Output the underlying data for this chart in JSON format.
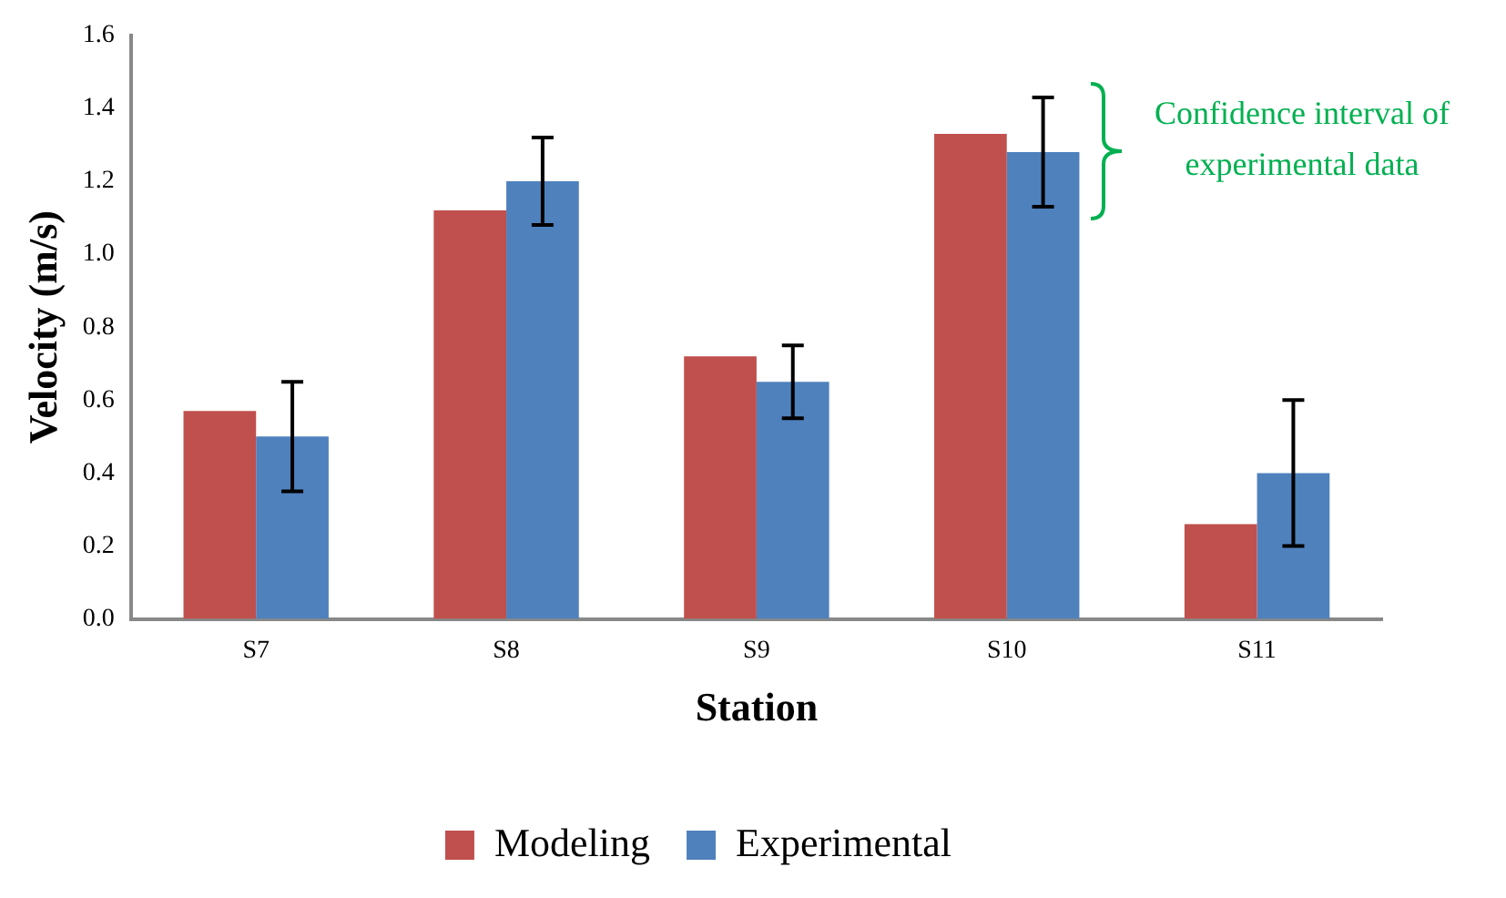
{
  "chart_data": {
    "type": "bar",
    "xlabel": "Station",
    "ylabel": "Velocity (m/s)",
    "categories": [
      "S7",
      "S8",
      "S9",
      "S10",
      "S11"
    ],
    "series": [
      {
        "name": "Modeling",
        "color": "#c0504d",
        "values": [
          0.57,
          1.12,
          0.72,
          1.33,
          0.26
        ]
      },
      {
        "name": "Experimental",
        "color": "#4f81bd",
        "values": [
          0.5,
          1.2,
          0.65,
          1.28,
          0.4
        ],
        "errors": [
          [
            0.35,
            0.65
          ],
          [
            1.08,
            1.32
          ],
          [
            0.55,
            0.75
          ],
          [
            1.13,
            1.43
          ],
          [
            0.2,
            0.6
          ]
        ]
      }
    ],
    "ylim": [
      0,
      1.6
    ],
    "yticks": [
      {
        "value": 0,
        "label": "0.0"
      },
      0.2,
      0.4,
      0.6,
      0.8,
      {
        "value": 1,
        "label": "1.0"
      },
      1.2,
      1.4,
      1.6
    ],
    "grid": false,
    "legend": "bottom",
    "annotations": [
      "Confidence interval of experimental data"
    ]
  }
}
